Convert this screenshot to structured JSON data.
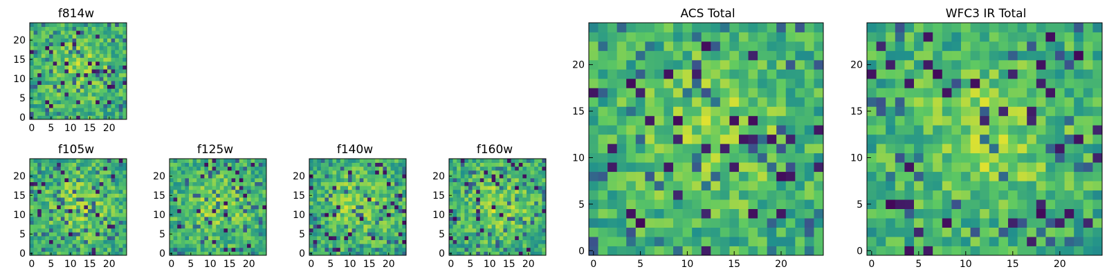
{
  "figure": {
    "description": "Grid of image panels showing pixel intensity maps per filter and combined totals"
  },
  "colormap": {
    "name": "viridis",
    "stops": [
      "#440154",
      "#3b528b",
      "#21918c",
      "#5ec962",
      "#fde725"
    ]
  },
  "chart_data": [
    {
      "type": "heatmap",
      "id": "f814w",
      "title": "f814w",
      "grid_size": 25,
      "xlim": [
        0,
        25
      ],
      "ylim": [
        0,
        25
      ],
      "xticks": [
        0,
        5,
        10,
        15,
        20
      ],
      "yticks": [
        0,
        5,
        10,
        15,
        20
      ],
      "xtick_labels": [
        "0",
        "5",
        "10",
        "15",
        "20"
      ],
      "ytick_labels": [
        "0",
        "5",
        "10",
        "15",
        "20"
      ],
      "seed": 814,
      "value_range": [
        0,
        1
      ],
      "note": "per-pixel values randomly distributed with a mild central brightening"
    },
    {
      "type": "heatmap",
      "id": "f105w",
      "title": "f105w",
      "grid_size": 25,
      "xlim": [
        0,
        25
      ],
      "ylim": [
        0,
        25
      ],
      "xticks": [
        0,
        5,
        10,
        15,
        20
      ],
      "yticks": [
        0,
        5,
        10,
        15,
        20
      ],
      "xtick_labels": [
        "0",
        "5",
        "10",
        "15",
        "20"
      ],
      "ytick_labels": [
        "0",
        "5",
        "10",
        "15",
        "20"
      ],
      "seed": 105,
      "value_range": [
        0,
        1
      ]
    },
    {
      "type": "heatmap",
      "id": "f125w",
      "title": "f125w",
      "grid_size": 25,
      "xlim": [
        0,
        25
      ],
      "ylim": [
        0,
        25
      ],
      "xticks": [
        0,
        5,
        10,
        15,
        20
      ],
      "yticks": [
        0,
        5,
        10,
        15,
        20
      ],
      "xtick_labels": [
        "0",
        "5",
        "10",
        "15",
        "20"
      ],
      "ytick_labels": [
        "0",
        "5",
        "10",
        "15",
        "20"
      ],
      "seed": 125,
      "value_range": [
        0,
        1
      ]
    },
    {
      "type": "heatmap",
      "id": "f140w",
      "title": "f140w",
      "grid_size": 25,
      "xlim": [
        0,
        25
      ],
      "ylim": [
        0,
        25
      ],
      "xticks": [
        0,
        5,
        10,
        15,
        20
      ],
      "yticks": [
        0,
        5,
        10,
        15,
        20
      ],
      "xtick_labels": [
        "0",
        "5",
        "10",
        "15",
        "20"
      ],
      "ytick_labels": [
        "0",
        "5",
        "10",
        "15",
        "20"
      ],
      "seed": 140,
      "value_range": [
        0,
        1
      ]
    },
    {
      "type": "heatmap",
      "id": "f160w",
      "title": "f160w",
      "grid_size": 25,
      "xlim": [
        0,
        25
      ],
      "ylim": [
        0,
        25
      ],
      "xticks": [
        0,
        5,
        10,
        15,
        20
      ],
      "yticks": [
        0,
        5,
        10,
        15,
        20
      ],
      "xtick_labels": [
        "0",
        "5",
        "10",
        "15",
        "20"
      ],
      "ytick_labels": [
        "0",
        "5",
        "10",
        "15",
        "20"
      ],
      "seed": 160,
      "value_range": [
        0,
        1
      ]
    },
    {
      "type": "heatmap",
      "id": "acs-total",
      "title": "ACS Total",
      "grid_size": 25,
      "xlim": [
        0,
        25
      ],
      "ylim": [
        0,
        25
      ],
      "xticks": [
        0,
        5,
        10,
        15,
        20
      ],
      "yticks": [
        0,
        5,
        10,
        15,
        20
      ],
      "xtick_labels": [
        "0",
        "5",
        "10",
        "15",
        "20"
      ],
      "ytick_labels": [
        "0",
        "5",
        "10",
        "15",
        "20"
      ],
      "seed": 814,
      "value_range": [
        0,
        1
      ]
    },
    {
      "type": "heatmap",
      "id": "wfc3-ir-total",
      "title": "WFC3 IR Total",
      "grid_size": 25,
      "xlim": [
        0,
        25
      ],
      "ylim": [
        0,
        25
      ],
      "xticks": [
        0,
        5,
        10,
        15,
        20
      ],
      "yticks": [
        0,
        5,
        10,
        15,
        20
      ],
      "xtick_labels": [
        "0",
        "5",
        "10",
        "15",
        "20"
      ],
      "ytick_labels": [
        "0",
        "5",
        "10",
        "15",
        "20"
      ],
      "seed": 530,
      "value_range": [
        0,
        1
      ]
    }
  ]
}
